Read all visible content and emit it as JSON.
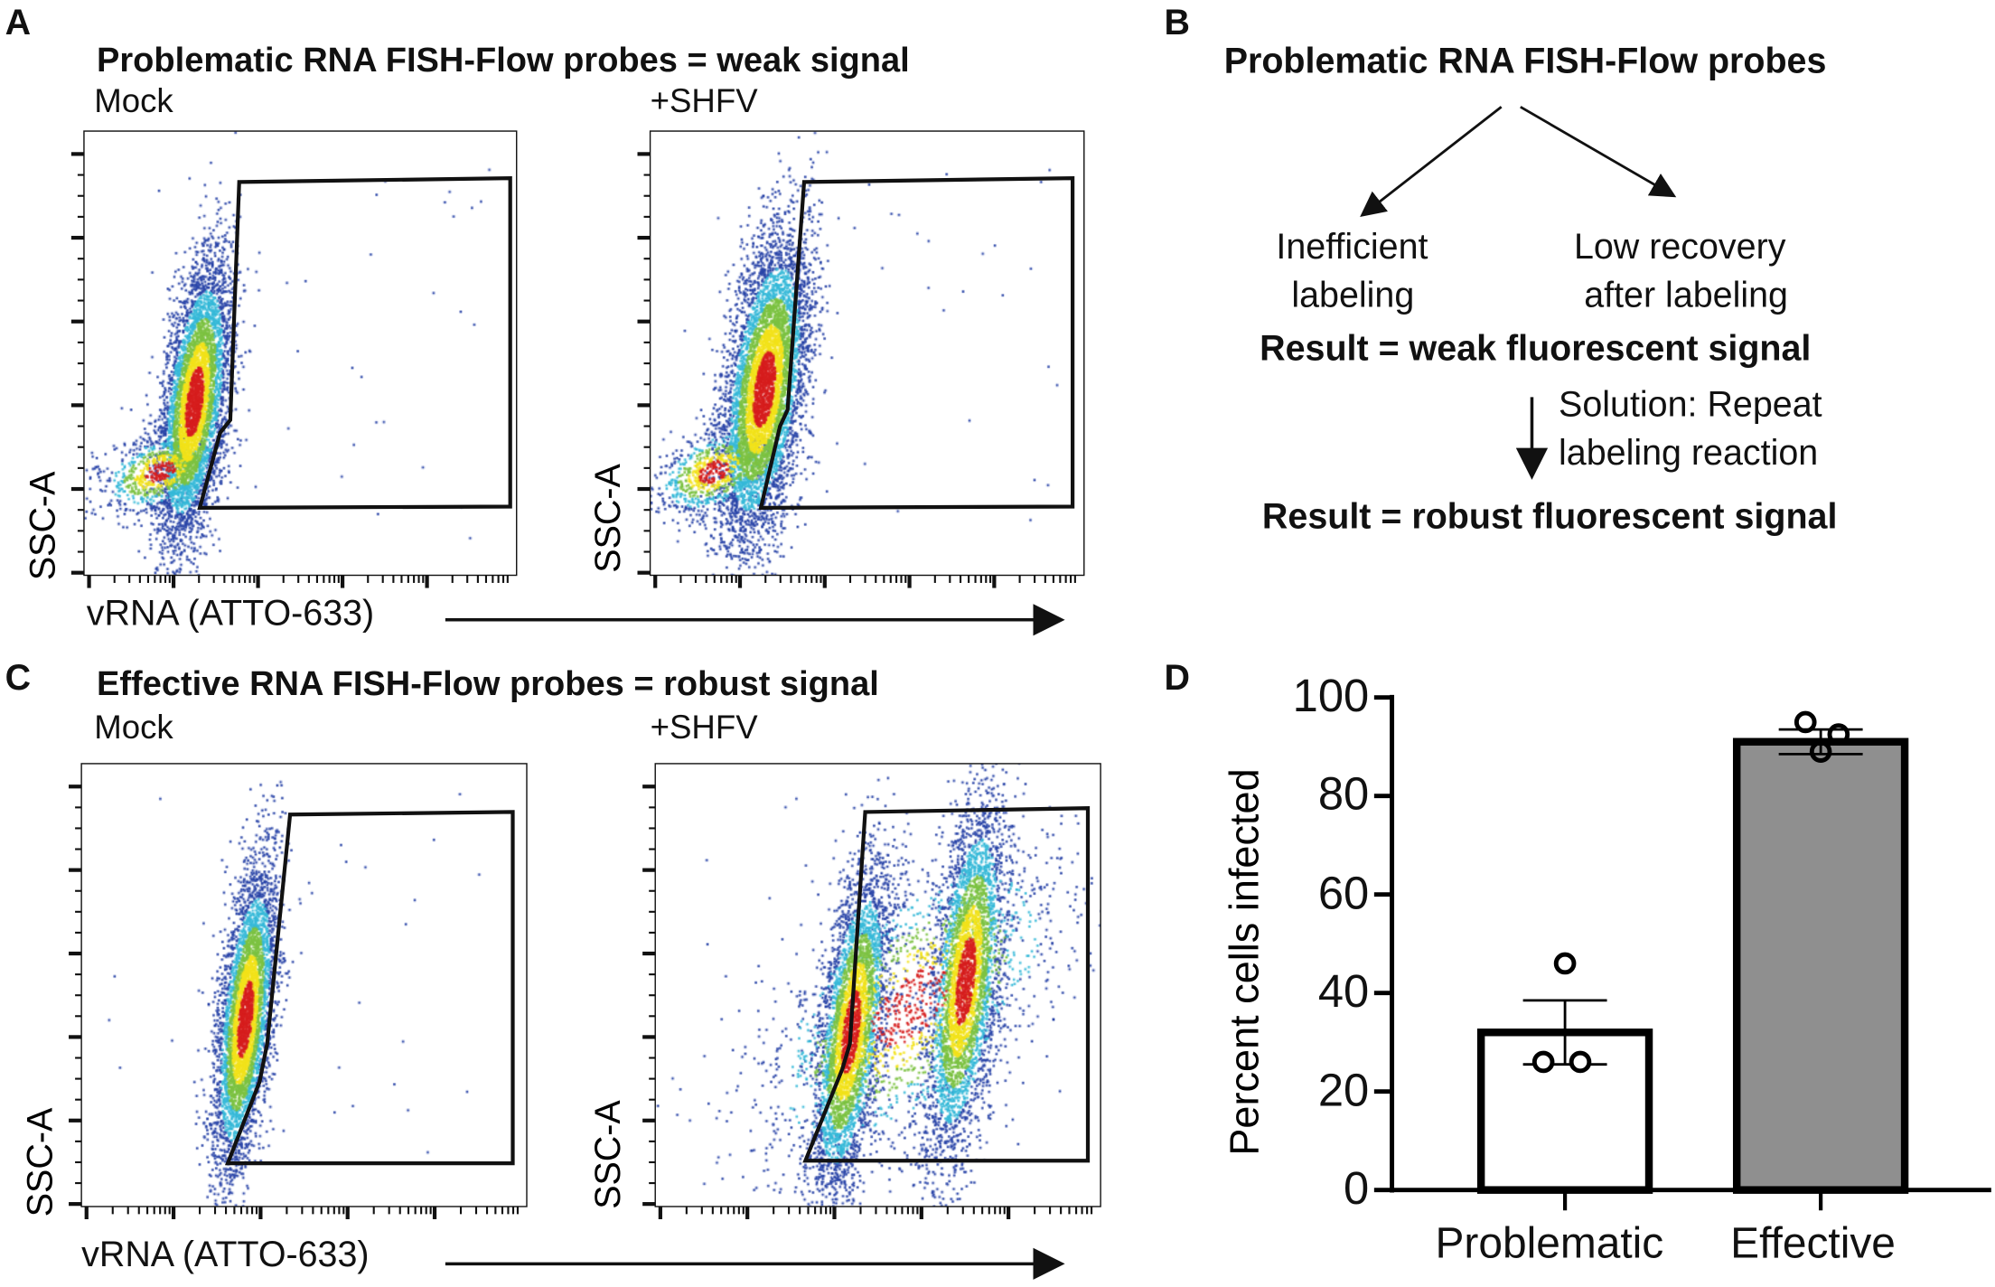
{
  "panels": {
    "A": {
      "letter": "A",
      "title": "Problematic RNA FISH-Flow probes = weak signal",
      "left_label": "Mock",
      "right_label": "+SHFV",
      "y_axis": "SSC-A",
      "x_axis": "vRNA (ATTO-633)"
    },
    "B": {
      "letter": "B",
      "title": "Problematic RNA FISH-Flow probes",
      "cause1_line1": "Inefficient",
      "cause1_line2": "labeling",
      "cause2_line1": "Low recovery",
      "cause2_line2": "after labeling",
      "result1": "Result = weak fluorescent signal",
      "solution_line1": "Solution: Repeat",
      "solution_line2": "labeling reaction",
      "result2": "Result = robust fluorescent signal"
    },
    "C": {
      "letter": "C",
      "title": "Effective RNA FISH-Flow probes = robust signal",
      "left_label": "Mock",
      "right_label": "+SHFV",
      "y_axis": "SSC-A",
      "x_axis": "vRNA (ATTO-633)"
    },
    "D": {
      "letter": "D"
    }
  },
  "chart_data": {
    "type": "bar",
    "title": "",
    "xlabel": "",
    "ylabel": "Percent cells infected",
    "categories": [
      "Problematic",
      "Effective"
    ],
    "values": [
      32,
      91
    ],
    "error": [
      6.5,
      2.5
    ],
    "points": [
      [
        46,
        26,
        26
      ],
      [
        95,
        92.5,
        89
      ]
    ],
    "fill_colors": [
      "#ffffff",
      "#8f8f8f"
    ],
    "ylim": [
      0,
      100
    ],
    "yticks": [
      "0",
      "20",
      "40",
      "60",
      "80",
      "100"
    ],
    "grid": false
  }
}
